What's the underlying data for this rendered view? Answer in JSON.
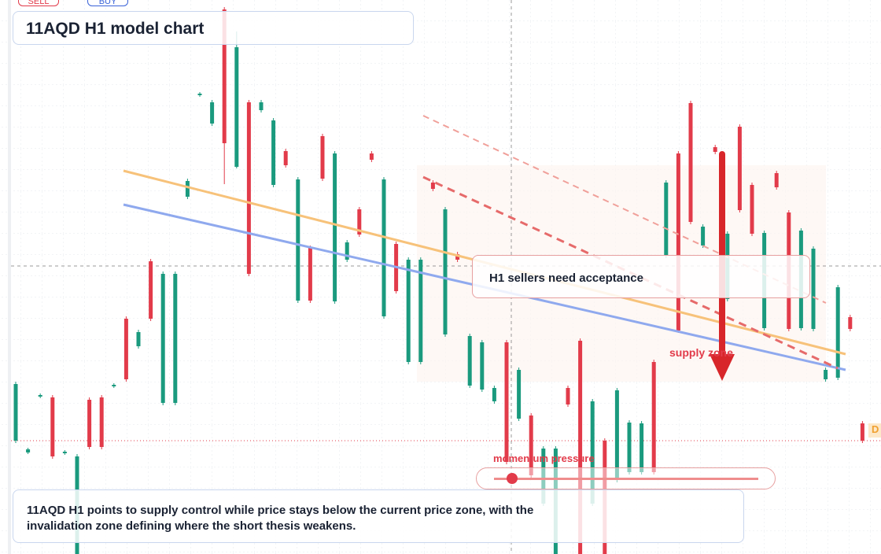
{
  "buttons": {
    "sell": "SELL",
    "buy": "BUY"
  },
  "header": {
    "title": "11AQD H1 model chart"
  },
  "chart_data": {
    "type": "candlestick",
    "up_color": "#1a9a7e",
    "down_color": "#e23b4a",
    "candles": [
      [
        144,
        219,
        141,
        216
      ],
      [
        129,
        135,
        127,
        133
      ],
      [
        200,
        204,
        198,
        202
      ],
      [
        199,
        202,
        121,
        124
      ],
      [
        128,
        132,
        126,
        130
      ],
      [
        0,
        127,
        0,
        124
      ],
      [
        196,
        199,
        133,
        136
      ],
      [
        199,
        202,
        133,
        136
      ],
      [
        213,
        217,
        211,
        215
      ],
      [
        299,
        302,
        219,
        222
      ],
      [
        264,
        285,
        261,
        282
      ],
      [
        372,
        375,
        296,
        299
      ],
      [
        192,
        359,
        189,
        356
      ],
      [
        192,
        359,
        189,
        356
      ],
      [
        454,
        477,
        451,
        474
      ],
      [
        583,
        587,
        581,
        585
      ],
      [
        547,
        577,
        544,
        574
      ],
      [
        692,
        695,
        470,
        522
      ],
      [
        492,
        664,
        490,
        644
      ],
      [
        574,
        577,
        353,
        356
      ],
      [
        564,
        577,
        561,
        574
      ],
      [
        469,
        554,
        466,
        551
      ],
      [
        512,
        515,
        491,
        494
      ],
      [
        322,
        479,
        319,
        476
      ],
      [
        389,
        392,
        319,
        322
      ],
      [
        531,
        534,
        474,
        477
      ],
      [
        321,
        512,
        318,
        509
      ],
      [
        374,
        399,
        371,
        396
      ],
      [
        438,
        441,
        403,
        406
      ],
      [
        509,
        512,
        498,
        501
      ],
      [
        302,
        479,
        299,
        476
      ],
      [
        394,
        397,
        331,
        334
      ],
      [
        244,
        377,
        241,
        374
      ],
      [
        244,
        377,
        241,
        374
      ],
      [
        472,
        475,
        461,
        464
      ],
      [
        279,
        441,
        276,
        438
      ],
      [
        381,
        384,
        371,
        374
      ],
      [
        214,
        280,
        211,
        277
      ],
      [
        209,
        272,
        206,
        269
      ],
      [
        194,
        214,
        191,
        211
      ],
      [
        269,
        272,
        114,
        117
      ],
      [
        172,
        237,
        169,
        234
      ],
      [
        176,
        179,
        97,
        100
      ],
      [
        64,
        137,
        61,
        134
      ],
      [
        0,
        137,
        0,
        134
      ],
      [
        211,
        214,
        187,
        190
      ],
      [
        271,
        274,
        0,
        0
      ],
      [
        64,
        197,
        61,
        194
      ],
      [
        144,
        147,
        0,
        0
      ],
      [
        94,
        211,
        91,
        208
      ],
      [
        104,
        170,
        101,
        167
      ],
      [
        104,
        169,
        101,
        166
      ],
      [
        244,
        247,
        101,
        104
      ],
      [
        379,
        475,
        376,
        472
      ],
      [
        509,
        512,
        281,
        284
      ],
      [
        573,
        576,
        419,
        422
      ],
      [
        392,
        419,
        389,
        416
      ],
      [
        517,
        520,
        508,
        511
      ],
      [
        324,
        410,
        321,
        407
      ],
      [
        543,
        546,
        434,
        437
      ],
      [
        469,
        472,
        404,
        407
      ],
      [
        287,
        411,
        284,
        408
      ],
      [
        484,
        487,
        463,
        466
      ],
      [
        434,
        437,
        283,
        286
      ],
      [
        287,
        414,
        284,
        411
      ],
      [
        286,
        391,
        283,
        388
      ],
      [
        222,
        237,
        219,
        234
      ],
      [
        224,
        342,
        221,
        339
      ],
      [
        301,
        304,
        283,
        286
      ],
      [
        166,
        169,
        141,
        144
      ]
    ]
  },
  "annotations": {
    "callout": "H1 sellers need acceptance",
    "zone": "supply zone",
    "momentum": "momentum pressure",
    "price_tag": "D"
  },
  "footer": {
    "text": "11AQD H1 points to supply control while price stays below the current price zone, with the invalidation zone defining where the short thesis weakens."
  }
}
